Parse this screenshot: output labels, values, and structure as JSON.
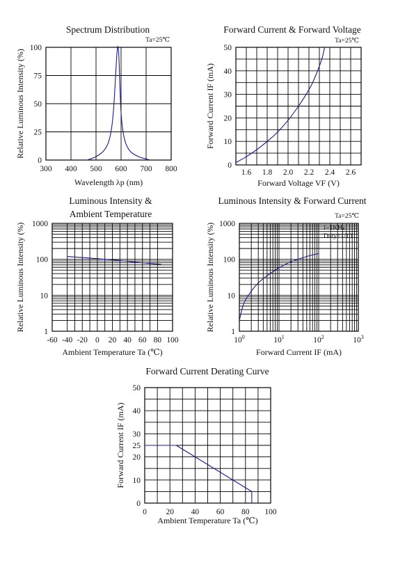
{
  "chart_data": [
    {
      "id": "spectrum",
      "type": "line",
      "title": "Spectrum Distribution",
      "note": "Ta=25℃",
      "xlabel": "Wavelength λp (nm)",
      "ylabel": "Relative Luminous Intensity (%)",
      "xlim": [
        300,
        800
      ],
      "ylim": [
        0,
        100
      ],
      "xticks": [
        300,
        400,
        500,
        600,
        700,
        800
      ],
      "yticks": [
        0,
        25,
        50,
        75,
        100
      ],
      "xtick_labels": [
        "300",
        "400",
        "500",
        "600",
        "700",
        "800"
      ],
      "ytick_labels": [
        "0",
        "25",
        "50",
        "75",
        "100"
      ],
      "xgrid": [
        300,
        400,
        500,
        600,
        700,
        800
      ],
      "ygrid": [
        0,
        25,
        50,
        75,
        100
      ],
      "series": [
        {
          "x": [
            465,
            500,
            530,
            550,
            562,
            570,
            577,
            582,
            586,
            589,
            592,
            595,
            600,
            608,
            620,
            640,
            670,
            700,
            715
          ],
          "y": [
            0,
            3,
            8,
            16,
            28,
            45,
            70,
            90,
            100,
            99,
            88,
            68,
            42,
            25,
            14,
            7,
            3,
            1,
            0
          ]
        }
      ]
    },
    {
      "id": "iv",
      "type": "line",
      "title": "Forward Current & Forward Voltage",
      "note": "Ta=25℃",
      "xlabel": "Forward Voltage  VF (V)",
      "ylabel": "Forward Current IF (mA)",
      "xlim": [
        1.5,
        2.7
      ],
      "ylim": [
        0,
        50
      ],
      "xticks": [
        1.6,
        1.8,
        2.0,
        2.2,
        2.4,
        2.6
      ],
      "yticks": [
        0,
        10,
        20,
        30,
        40,
        50
      ],
      "xtick_labels": [
        "1.6",
        "1.8",
        "2.0",
        "2.2",
        "2.4",
        "2.6"
      ],
      "ytick_labels": [
        "0",
        "10",
        "20",
        "30",
        "40",
        "50"
      ],
      "xgrid": [
        1.5,
        1.6,
        1.7,
        1.8,
        1.9,
        2.0,
        2.1,
        2.2,
        2.3,
        2.4,
        2.5,
        2.6,
        2.7
      ],
      "ygrid": [
        0,
        5,
        10,
        15,
        20,
        25,
        30,
        35,
        40,
        45,
        50
      ],
      "series": [
        {
          "x": [
            1.5,
            1.6,
            1.7,
            1.8,
            1.9,
            2.0,
            2.1,
            2.2,
            2.25,
            2.3,
            2.33,
            2.35
          ],
          "y": [
            1,
            3.5,
            6.5,
            10,
            14,
            19,
            25,
            32,
            36.5,
            42,
            46,
            50
          ]
        }
      ]
    },
    {
      "id": "temp",
      "type": "line",
      "title": [
        "Luminous Intensity &",
        "Ambient Temperature"
      ],
      "note": "",
      "xlabel": "Ambient Temperature Ta (℃)",
      "ylabel": "Relative Luminous Intensity (%)",
      "xlim": [
        -60,
        100
      ],
      "ylim": [
        1,
        1000
      ],
      "yscale": "log",
      "xticks": [
        -60,
        -40,
        -20,
        0,
        20,
        40,
        60,
        80,
        100
      ],
      "yticks": [
        1,
        10,
        100,
        1000
      ],
      "xtick_labels": [
        "-60",
        "-40",
        "-20",
        "0",
        "20",
        "40",
        "60",
        "80",
        "100"
      ],
      "ytick_labels": [
        "1",
        "10",
        "100",
        "1000"
      ],
      "xgrid": [
        -40,
        -30,
        -20,
        -10,
        0,
        10,
        20,
        30,
        40,
        50,
        60,
        70,
        80
      ],
      "ygrid": [
        1,
        2,
        3,
        4,
        5,
        6,
        7,
        8,
        9,
        10,
        20,
        30,
        40,
        50,
        60,
        70,
        80,
        90,
        100,
        200,
        300,
        400,
        500,
        600,
        700,
        800,
        900,
        1000
      ],
      "series": [
        {
          "x": [
            -40,
            -20,
            0,
            20,
            40,
            60,
            85
          ],
          "y": [
            120,
            112,
            104,
            97,
            88,
            80,
            72
          ]
        }
      ]
    },
    {
      "id": "lumcur",
      "type": "line",
      "title": "Luminous Intensity & Forward Current",
      "note": "Ta=25℃",
      "notes": [
        "f=1KHz",
        "Duty=1/10"
      ],
      "xlabel": "Forward Current IF (mA)",
      "ylabel": "Relative Luminous Intensity (%)",
      "xlim": [
        1,
        1000
      ],
      "ylim": [
        1,
        1000
      ],
      "xscale": "log",
      "yscale": "log",
      "xticks": [
        1,
        10,
        100,
        1000
      ],
      "yticks": [
        1,
        10,
        100,
        1000
      ],
      "xtick_labels": [
        "10⁰",
        "10¹",
        "10²",
        "10³"
      ],
      "ytick_labels": [
        "1",
        "10",
        "100",
        "1000"
      ],
      "xgrid": [
        1,
        2,
        3,
        4,
        5,
        6,
        7,
        8,
        9,
        10,
        20,
        30,
        40,
        50,
        60,
        70,
        80,
        90,
        100,
        200,
        300,
        400,
        500,
        600,
        700,
        800,
        900,
        1000
      ],
      "ygrid": [
        1,
        2,
        3,
        4,
        5,
        6,
        7,
        8,
        9,
        10,
        20,
        30,
        40,
        50,
        60,
        70,
        80,
        90,
        100,
        200,
        300,
        400,
        500,
        600,
        700,
        800,
        900,
        1000
      ],
      "series": [
        {
          "x": [
            1,
            1.3,
            2,
            3,
            5,
            10,
            20,
            50,
            100
          ],
          "y": [
            2,
            6,
            13,
            22,
            35,
            58,
            85,
            120,
            145
          ]
        }
      ]
    },
    {
      "id": "derate",
      "type": "line",
      "title": "Forward Current Derating Curve",
      "note": "",
      "xlabel": "Ambient Temperature Ta (℃)",
      "ylabel": "Forward Current IF (mA)",
      "xlim": [
        0,
        100
      ],
      "ylim": [
        0,
        50
      ],
      "xticks": [
        0,
        20,
        40,
        60,
        80,
        100
      ],
      "yticks": [
        0,
        10,
        20,
        25,
        30,
        40,
        50
      ],
      "xtick_labels": [
        "0",
        "20",
        "40",
        "60",
        "80",
        "100"
      ],
      "ytick_labels": [
        "0",
        "10",
        "20",
        "25",
        "30",
        "40",
        "50"
      ],
      "xgrid": [
        0,
        10,
        20,
        30,
        40,
        50,
        60,
        70,
        80,
        90,
        100
      ],
      "ygrid": [
        0,
        5,
        10,
        15,
        20,
        25,
        30,
        35,
        40,
        45,
        50
      ],
      "series": [
        {
          "x": [
            0,
            25,
            85
          ],
          "y": [
            25,
            25,
            5
          ]
        }
      ]
    }
  ]
}
